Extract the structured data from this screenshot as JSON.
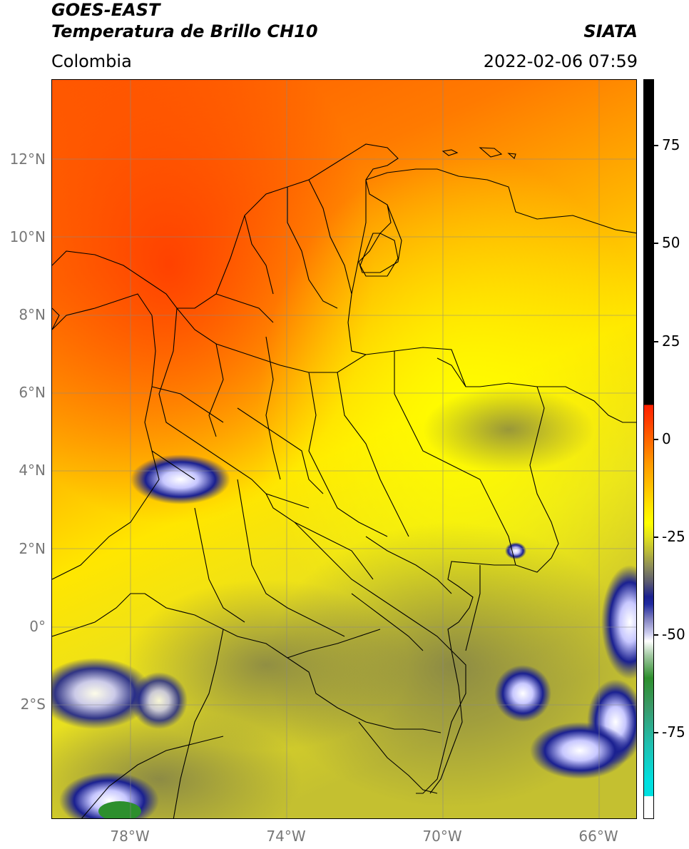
{
  "header": {
    "satellite": "GOES-EAST",
    "product": "Temperatura de Brillo CH10",
    "brand": "SIATA",
    "region": "Colombia",
    "timestamp": "2022-02-06 07:59"
  },
  "axes": {
    "lat_labels": [
      "12°N",
      "10°N",
      "8°N",
      "6°N",
      "4°N",
      "2°N",
      "0°",
      "2°S"
    ],
    "lon_labels": [
      "78°W",
      "74°W",
      "70°W",
      "66°W"
    ]
  },
  "colorbar": {
    "labels": [
      "75",
      "50",
      "25",
      "0",
      "-25",
      "-50",
      "-75"
    ],
    "colors": {
      "warm": "#ff3a00",
      "orange": "#ff9a00",
      "yellow": "#ffff00",
      "olive": "#b8b83a",
      "gray": "#6c6c6c",
      "navy": "#141a80",
      "white": "#ffffff",
      "green": "#2d8f2d",
      "cyan": "#00e0e0",
      "black": "#000000"
    }
  }
}
